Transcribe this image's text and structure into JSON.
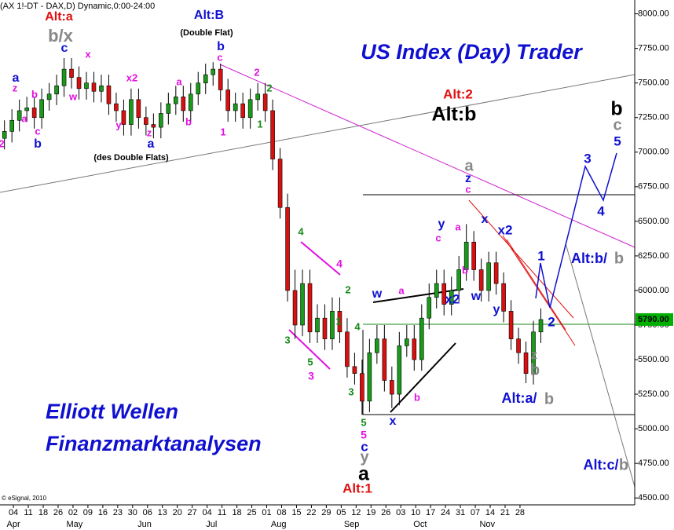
{
  "chart_data": {
    "type": "candlestick",
    "header": "(AX 1!-DT - DAX,D) Dynamic,0:00-24:00",
    "title": "US Index (Day) Trader",
    "footer_lines": [
      "Elliott Wellen",
      "Finanzmarktanalysen"
    ],
    "credit": "© eSignal, 2010",
    "ylim": [
      4450,
      8100
    ],
    "yticks": [
      {
        "value": 4500,
        "label": "4500.00"
      },
      {
        "value": 4750,
        "label": "4750.00"
      },
      {
        "value": 5000,
        "label": "5000.00"
      },
      {
        "value": 5250,
        "label": "5250.00"
      },
      {
        "value": 5500,
        "label": "5500.00"
      },
      {
        "value": 5750,
        "label": "5750.00"
      },
      {
        "value": 6000,
        "label": "6000.00"
      },
      {
        "value": 6250,
        "label": "6250.00"
      },
      {
        "value": 6500,
        "label": "6500.00"
      },
      {
        "value": 6750,
        "label": "6750.00"
      },
      {
        "value": 7000,
        "label": "7000.00"
      },
      {
        "value": 7250,
        "label": "7250.00"
      },
      {
        "value": 7500,
        "label": "7500.00"
      },
      {
        "value": 7750,
        "label": "7750.00"
      },
      {
        "value": 8000,
        "label": "8000.00"
      }
    ],
    "xlim": [
      -0.9,
      41.7
    ],
    "xticks": [
      {
        "value": 0,
        "label": "04"
      },
      {
        "value": 1,
        "label": "11"
      },
      {
        "value": 2,
        "label": "18"
      },
      {
        "value": 3,
        "label": "26"
      },
      {
        "value": 4,
        "label": "02"
      },
      {
        "value": 5,
        "label": "09"
      },
      {
        "value": 6,
        "label": "16"
      },
      {
        "value": 7,
        "label": "23"
      },
      {
        "value": 8,
        "label": "30"
      },
      {
        "value": 9,
        "label": "06"
      },
      {
        "value": 10,
        "label": "13"
      },
      {
        "value": 11,
        "label": "20"
      },
      {
        "value": 12,
        "label": "27"
      },
      {
        "value": 13,
        "label": "04"
      },
      {
        "value": 14,
        "label": "11"
      },
      {
        "value": 15,
        "label": "18"
      },
      {
        "value": 16,
        "label": "25"
      },
      {
        "value": 17,
        "label": "01"
      },
      {
        "value": 18,
        "label": "08"
      },
      {
        "value": 19,
        "label": "15"
      },
      {
        "value": 20,
        "label": "22"
      },
      {
        "value": 21,
        "label": "29"
      },
      {
        "value": 22,
        "label": "05"
      },
      {
        "value": 23,
        "label": "12"
      },
      {
        "value": 24,
        "label": "19"
      },
      {
        "value": 25,
        "label": "26"
      },
      {
        "value": 26,
        "label": "03"
      },
      {
        "value": 27,
        "label": "10"
      },
      {
        "value": 28,
        "label": "17"
      },
      {
        "value": 29,
        "label": "24"
      },
      {
        "value": 30,
        "label": "31"
      },
      {
        "value": 31,
        "label": "07"
      },
      {
        "value": 32,
        "label": "14"
      },
      {
        "value": 33,
        "label": "21"
      },
      {
        "value": 34,
        "label": "28"
      }
    ],
    "month_labels": [
      {
        "value": 0,
        "label": "Apr"
      },
      {
        "value": 4.1,
        "label": "May"
      },
      {
        "value": 8.8,
        "label": "Jun"
      },
      {
        "value": 13.3,
        "label": "Jul"
      },
      {
        "value": 17.8,
        "label": "Aug"
      },
      {
        "value": 22.7,
        "label": "Sep"
      },
      {
        "value": 27.3,
        "label": "Oct"
      },
      {
        "value": 31.8,
        "label": "Nov"
      }
    ],
    "up_color": "#1a9a1a",
    "down_color": "#d81010",
    "x": [
      -0.6,
      -0.1,
      0.4,
      0.9,
      1.4,
      1.9,
      2.4,
      2.9,
      3.4,
      3.9,
      4.4,
      4.9,
      5.4,
      5.9,
      6.4,
      6.9,
      7.4,
      7.9,
      8.4,
      8.9,
      9.4,
      9.9,
      10.4,
      10.9,
      11.4,
      11.9,
      12.4,
      12.9,
      13.4,
      13.9,
      14.4,
      14.9,
      15.4,
      15.9,
      16.4,
      16.9,
      17.4,
      17.9,
      18.4,
      18.9,
      19.4,
      19.9,
      20.4,
      20.9,
      21.4,
      21.9,
      22.4,
      22.9,
      23.4,
      23.9,
      24.4,
      24.9,
      25.4,
      25.9,
      26.4,
      26.9,
      27.4,
      27.9,
      28.4,
      28.9,
      29.4,
      29.9,
      30.4,
      30.9,
      31.4,
      31.9,
      32.4,
      32.9,
      33.4,
      33.9,
      34.4,
      34.9,
      35.4
    ],
    "open": [
      7100,
      7150,
      7230,
      7300,
      7320,
      7250,
      7380,
      7420,
      7480,
      7600,
      7540,
      7460,
      7500,
      7440,
      7480,
      7350,
      7300,
      7200,
      7380,
      7250,
      7200,
      7180,
      7280,
      7350,
      7400,
      7300,
      7420,
      7500,
      7560,
      7600,
      7450,
      7300,
      7350,
      7250,
      7380,
      7420,
      7300,
      6950,
      6600,
      6000,
      5750,
      6050,
      5700,
      5800,
      5650,
      5850,
      5700,
      5450,
      5400,
      5200,
      5550,
      5650,
      5350,
      5250,
      5600,
      5650,
      5500,
      5800,
      5950,
      6050,
      5900,
      6000,
      6150,
      6350,
      6150,
      6000,
      6200,
      6050,
      5850,
      5650,
      5550,
      5400,
      5700
    ],
    "high": [
      7230,
      7310,
      7380,
      7400,
      7400,
      7460,
      7500,
      7560,
      7680,
      7680,
      7620,
      7580,
      7580,
      7560,
      7560,
      7430,
      7380,
      7460,
      7460,
      7330,
      7280,
      7360,
      7430,
      7480,
      7480,
      7500,
      7580,
      7640,
      7650,
      7640,
      7530,
      7430,
      7430,
      7460,
      7500,
      7500,
      7380,
      7030,
      6700,
      6150,
      6150,
      6150,
      5900,
      5900,
      5950,
      5950,
      5800,
      5550,
      5500,
      5650,
      5750,
      5750,
      5450,
      5700,
      5750,
      5750,
      5900,
      6050,
      6150,
      6150,
      6100,
      6250,
      6480,
      6430,
      6230,
      6280,
      6280,
      6130,
      5930,
      5730,
      5630,
      5780,
      5870
    ],
    "low": [
      7020,
      7070,
      7150,
      7220,
      7170,
      7170,
      7300,
      7340,
      7400,
      7460,
      7380,
      7380,
      7360,
      7360,
      7270,
      7220,
      7120,
      7120,
      7170,
      7120,
      7100,
      7100,
      7200,
      7270,
      7220,
      7220,
      7340,
      7420,
      7480,
      7370,
      7220,
      7220,
      7170,
      7170,
      7300,
      7220,
      6870,
      6520,
      5920,
      5650,
      5670,
      5620,
      5620,
      5570,
      5570,
      5620,
      5370,
      5320,
      5100,
      5120,
      5470,
      5270,
      5150,
      5170,
      5520,
      5420,
      5420,
      5720,
      5870,
      5820,
      5820,
      5920,
      6070,
      6070,
      5920,
      5920,
      5970,
      5770,
      5570,
      5470,
      5330,
      5320,
      5620
    ],
    "close": [
      7150,
      7230,
      7300,
      7320,
      7250,
      7380,
      7420,
      7480,
      7600,
      7540,
      7460,
      7500,
      7440,
      7480,
      7350,
      7300,
      7200,
      7380,
      7250,
      7200,
      7180,
      7280,
      7350,
      7400,
      7300,
      7420,
      7500,
      7560,
      7600,
      7450,
      7300,
      7350,
      7250,
      7380,
      7420,
      7300,
      6950,
      6600,
      6000,
      5750,
      6050,
      5700,
      5800,
      5650,
      5850,
      5700,
      5450,
      5400,
      5200,
      5550,
      5650,
      5350,
      5250,
      5600,
      5650,
      5500,
      5800,
      5950,
      6050,
      5900,
      6000,
      6150,
      6350,
      6150,
      6000,
      6200,
      6050,
      5850,
      5650,
      5550,
      5400,
      5700,
      5790
    ],
    "last_price": {
      "value": 5790,
      "label": "5790.00",
      "color": "#00b000"
    },
    "annotations": [
      {
        "text": "Alt:a",
        "color": "#e01010"
      },
      {
        "text": "Alt:B",
        "color": "#1010d0"
      },
      {
        "text": "(Double Flat)",
        "color": "#000000"
      },
      {
        "text": "b/x",
        "color": "#888888"
      },
      {
        "text": "c",
        "color": "#1010d0"
      },
      {
        "text": "b",
        "color": "#1010d0"
      },
      {
        "text": "c",
        "color": "#e010e0"
      },
      {
        "text": "a",
        "color": "#1010d0"
      },
      {
        "text": "z",
        "color": "#e010e0"
      },
      {
        "text": "b",
        "color": "#e010e0"
      },
      {
        "text": "a",
        "color": "#e010e0"
      },
      {
        "text": "c",
        "color": "#e010e0"
      },
      {
        "text": "b",
        "color": "#1010d0"
      },
      {
        "text": "2",
        "color": "#e010e0"
      },
      {
        "text": "x",
        "color": "#e010e0"
      },
      {
        "text": "w",
        "color": "#e010e0"
      },
      {
        "text": "x2",
        "color": "#e010e0"
      },
      {
        "text": "a",
        "color": "#e010e0"
      },
      {
        "text": "y",
        "color": "#e010e0"
      },
      {
        "text": "z",
        "color": "#e010e0"
      },
      {
        "text": "a",
        "color": "#1010d0"
      },
      {
        "text": "b",
        "color": "#e010e0"
      },
      {
        "text": "1",
        "color": "#e010e0"
      },
      {
        "text": "(des Double Flats)",
        "color": "#000000"
      },
      {
        "text": "2",
        "color": "#e010e0"
      },
      {
        "text": "2",
        "color": "#1a8a1a"
      },
      {
        "text": "1",
        "color": "#1a8a1a"
      },
      {
        "text": "Alt:2",
        "color": "#e01010"
      },
      {
        "text": "Alt:b",
        "color": "#000000"
      },
      {
        "text": "b",
        "color": "#000000"
      },
      {
        "text": "c",
        "color": "#888888"
      },
      {
        "text": "5",
        "color": "#1010d0"
      },
      {
        "text": "a",
        "color": "#888888"
      },
      {
        "text": "z",
        "color": "#1010d0"
      },
      {
        "text": "c",
        "color": "#e010e0"
      },
      {
        "text": "3",
        "color": "#1010d0"
      },
      {
        "text": "4",
        "color": "#1010d0"
      },
      {
        "text": "x",
        "color": "#1010d0"
      },
      {
        "text": "x2",
        "color": "#1010d0"
      },
      {
        "text": "y",
        "color": "#1010d0"
      },
      {
        "text": "c",
        "color": "#e010e0"
      },
      {
        "text": "a",
        "color": "#e010e0"
      },
      {
        "text": "b",
        "color": "#e010e0"
      },
      {
        "text": "w",
        "color": "#1010d0"
      },
      {
        "text": "y",
        "color": "#1010d0"
      },
      {
        "text": "x2",
        "color": "#1010d0"
      },
      {
        "text": "w",
        "color": "#1010d0"
      },
      {
        "text": "a",
        "color": "#e010e0"
      },
      {
        "text": "1",
        "color": "#1010d0"
      },
      {
        "text": "2",
        "color": "#1010d0"
      },
      {
        "text": "Alt:b/",
        "color": "#1010d0"
      },
      {
        "text": "b",
        "color": "#888888"
      },
      {
        "text": "z",
        "color": "#888888"
      },
      {
        "text": "b",
        "color": "#888888"
      },
      {
        "text": "Alt:a/",
        "color": "#1010d0"
      },
      {
        "text": "b",
        "color": "#888888"
      },
      {
        "text": "x",
        "color": "#1010d0"
      },
      {
        "text": "b",
        "color": "#e010e0"
      },
      {
        "text": "4",
        "color": "#1a8a1a"
      },
      {
        "text": "4",
        "color": "#e010e0"
      },
      {
        "text": "2",
        "color": "#1a8a1a"
      },
      {
        "text": "1",
        "color": "#1a8a1a"
      },
      {
        "text": "3",
        "color": "#1a8a1a"
      },
      {
        "text": "5",
        "color": "#1a8a1a"
      },
      {
        "text": "3",
        "color": "#e010e0"
      },
      {
        "text": "4",
        "color": "#1a8a1a"
      },
      {
        "text": "3",
        "color": "#1a8a1a"
      },
      {
        "text": "5",
        "color": "#1a8a1a"
      },
      {
        "text": "5",
        "color": "#e010e0"
      },
      {
        "text": "c",
        "color": "#1010d0"
      },
      {
        "text": "y",
        "color": "#888888"
      },
      {
        "text": "a",
        "color": "#000000"
      },
      {
        "text": "Alt:1",
        "color": "#e01010"
      },
      {
        "text": "Alt:c/",
        "color": "#1010d0"
      },
      {
        "text": "b",
        "color": "#888888"
      }
    ]
  }
}
